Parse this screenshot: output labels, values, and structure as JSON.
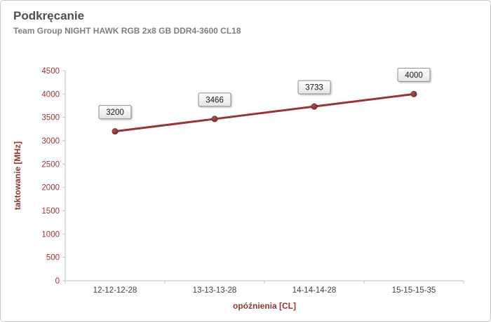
{
  "header": {
    "title": "Podkręcanie",
    "subtitle": "Team Group NIGHT HAWK RGB 2x8 GB DDR4-3600 CL18"
  },
  "chart_data": {
    "type": "line",
    "title": "Podkręcanie",
    "subtitle": "Team Group NIGHT HAWK RGB 2x8 GB DDR4-3600 CL18",
    "categories": [
      "12-12-12-28",
      "13-13-13-28",
      "14-14-14-28",
      "15-15-15-35"
    ],
    "series": [
      {
        "name": "taktowanie",
        "values": [
          3200,
          3466,
          3733,
          4000
        ]
      }
    ],
    "data_labels": [
      "3200",
      "3466",
      "3733",
      "4000"
    ],
    "xlabel": "opóźnienia [CL]",
    "ylabel": "taktowanie [MHz]",
    "ylim": [
      0,
      4500
    ],
    "ytick_step": 500,
    "grid": false,
    "legend": "none",
    "colors": {
      "line": "#943634",
      "marker_dark": "#6b2423",
      "marker_light": "#b05250",
      "axis": "#bfbfbf",
      "y_tick_label": "#943634",
      "x_tick_label": "#3f3f3f",
      "axis_title": "#943634",
      "title": "#4f4f4f",
      "subtitle": "#7f7f7f",
      "label_box_border": "#8c8c8c",
      "label_text": "#1a1a1a"
    }
  }
}
